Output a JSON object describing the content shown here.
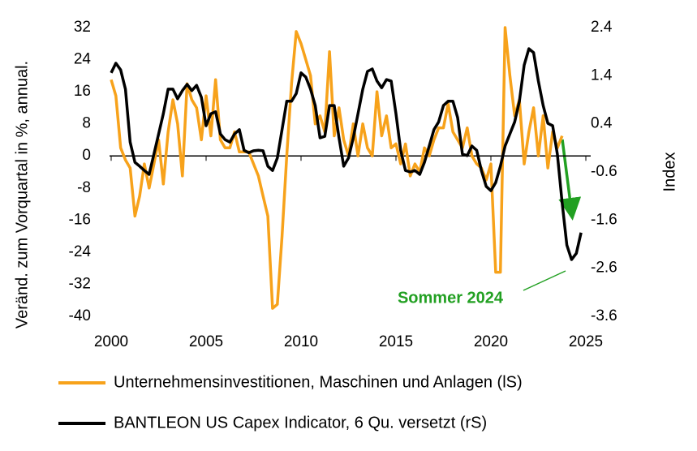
{
  "chart_data": {
    "type": "line",
    "ylabel": "Veränd. zum Vorquartal in %, annual.",
    "y2label": "Index",
    "annotation": "Sommer 2024",
    "xlim": [
      2000,
      2025
    ],
    "xticks": [
      2000,
      2005,
      2010,
      2015,
      2020,
      2025
    ],
    "ylim": [
      -40,
      32
    ],
    "yticks": [
      32,
      24,
      16,
      8,
      0,
      -8,
      -16,
      -24,
      -32,
      -40
    ],
    "y2lim": [
      -3.6,
      2.4
    ],
    "y2ticks": [
      2.4,
      1.4,
      0.4,
      -0.6,
      -1.6,
      -2.6,
      -3.6
    ],
    "x": [
      2000,
      2000.25,
      2000.5,
      2000.75,
      2001,
      2001.25,
      2001.5,
      2001.75,
      2002,
      2002.25,
      2002.5,
      2002.75,
      2003,
      2003.25,
      2003.5,
      2003.75,
      2004,
      2004.25,
      2004.5,
      2004.75,
      2005,
      2005.25,
      2005.5,
      2005.75,
      2006,
      2006.25,
      2006.5,
      2006.75,
      2007,
      2007.25,
      2007.5,
      2007.75,
      2008,
      2008.25,
      2008.5,
      2008.75,
      2009,
      2009.25,
      2009.5,
      2009.75,
      2010,
      2010.25,
      2010.5,
      2010.75,
      2011,
      2011.25,
      2011.5,
      2011.75,
      2012,
      2012.25,
      2012.5,
      2012.75,
      2013,
      2013.25,
      2013.5,
      2013.75,
      2014,
      2014.25,
      2014.5,
      2014.75,
      2015,
      2015.25,
      2015.5,
      2015.75,
      2016,
      2016.25,
      2016.5,
      2016.75,
      2017,
      2017.25,
      2017.5,
      2017.75,
      2018,
      2018.25,
      2018.5,
      2018.75,
      2019,
      2019.25,
      2019.5,
      2019.75,
      2020,
      2020.25,
      2020.5,
      2020.75,
      2021,
      2021.25,
      2021.5,
      2021.75,
      2022,
      2022.25,
      2022.5,
      2022.75,
      2023,
      2023.25,
      2023.5,
      2023.75,
      2024,
      2024.25,
      2024.5,
      2024.75
    ],
    "series": [
      {
        "name": "Unternehmensinvestitionen, Maschinen und Anlagen (lS)",
        "color": "#f7a21b",
        "values": [
          19,
          15,
          2,
          -1,
          -3,
          -15,
          -10,
          -2,
          -8,
          -2,
          4,
          -7,
          6,
          14,
          8,
          -5,
          18,
          14,
          12,
          4,
          15,
          5,
          19,
          4,
          2,
          2,
          6,
          1,
          1,
          1,
          -2,
          -5,
          -10,
          -15,
          -38,
          -37,
          -20,
          0,
          18,
          31,
          28,
          24,
          20,
          8,
          10,
          6,
          26,
          5,
          12,
          4,
          0,
          8,
          0,
          8,
          2,
          0,
          16,
          5,
          10,
          2,
          3,
          -2,
          3,
          -5,
          -2,
          -4,
          2,
          0,
          4,
          7,
          7,
          13,
          6,
          4,
          2,
          7,
          0,
          -2,
          -3,
          -6,
          -2,
          -29,
          -29,
          32,
          20,
          10,
          14,
          -2,
          6,
          12,
          0,
          10,
          -3,
          6,
          2,
          5,
          null,
          null,
          null,
          null
        ]
      },
      {
        "name": "BANTLEON US Capex Indicator, 6 Qu. versetzt (rS)",
        "color": "#000000",
        "axis": "y2",
        "values": [
          1.46,
          1.66,
          1.52,
          1.12,
          0.02,
          -0.4,
          -0.48,
          -0.57,
          -0.65,
          -0.23,
          0.19,
          0.61,
          1.12,
          1.12,
          0.92,
          1.09,
          1.22,
          1.09,
          1.2,
          0.95,
          0.36,
          0.61,
          0.65,
          0.19,
          0.07,
          0.02,
          0.19,
          0.28,
          -0.15,
          -0.2,
          -0.16,
          -0.15,
          -0.16,
          -0.48,
          -0.57,
          -0.31,
          0.28,
          0.87,
          0.87,
          1.03,
          1.46,
          1.37,
          1.12,
          0.78,
          0.11,
          0.14,
          0.78,
          0.78,
          0.11,
          -0.48,
          -0.31,
          0.11,
          0.61,
          1.12,
          1.49,
          1.54,
          1.29,
          1.15,
          1.32,
          1.29,
          0.61,
          -0.15,
          -0.57,
          -0.6,
          -0.57,
          -0.65,
          -0.4,
          -0.06,
          0.28,
          0.44,
          0.78,
          0.87,
          0.87,
          0.53,
          -0.23,
          -0.26,
          -0.06,
          -0.15,
          -0.57,
          -0.9,
          -0.99,
          -0.82,
          -0.48,
          -0.06,
          0.19,
          0.44,
          0.87,
          1.62,
          1.96,
          1.88,
          1.29,
          0.78,
          0.41,
          0.36,
          -0.23,
          -1.24,
          -2.12,
          -2.42,
          -2.29,
          -1.86
        ]
      }
    ]
  }
}
